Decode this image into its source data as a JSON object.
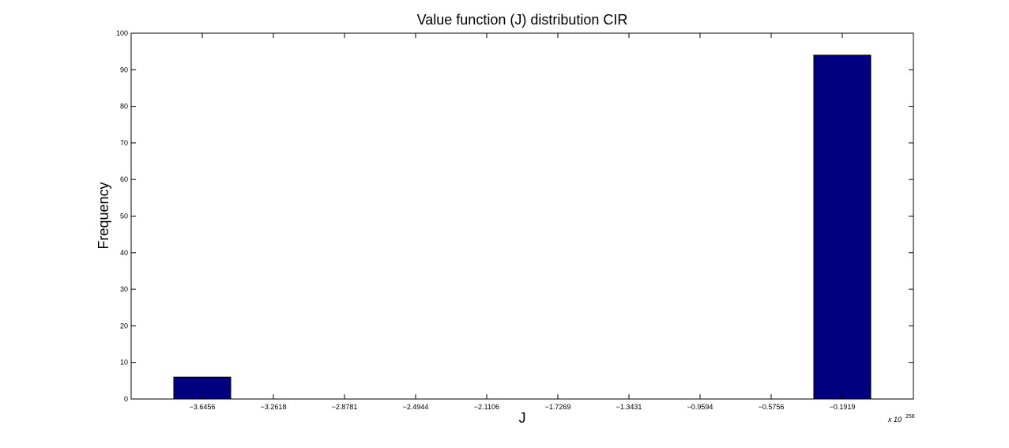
{
  "chart_data": {
    "type": "bar",
    "title": "Value function (J) distribution CIR",
    "xlabel": "J",
    "ylabel": "Frequency",
    "x_multiplier": "x 10",
    "x_multiplier_exponent": "258",
    "categories": [
      "-3.6456",
      "-3.2618",
      "-2.8781",
      "-2.4944",
      "-2.1106",
      "-1.7269",
      "-1.3431",
      "-0.9594",
      "-0.5756",
      "-0.1919"
    ],
    "values": [
      6,
      0,
      0,
      0,
      0,
      0,
      0,
      0,
      0,
      94
    ],
    "ylim": [
      0,
      100
    ],
    "yticks": [
      0,
      10,
      20,
      30,
      40,
      50,
      60,
      70,
      80,
      90,
      100
    ],
    "xlim": [
      -4.0293,
      0.1919
    ],
    "bar_color": "#000080",
    "grid": false,
    "legend": "none"
  }
}
